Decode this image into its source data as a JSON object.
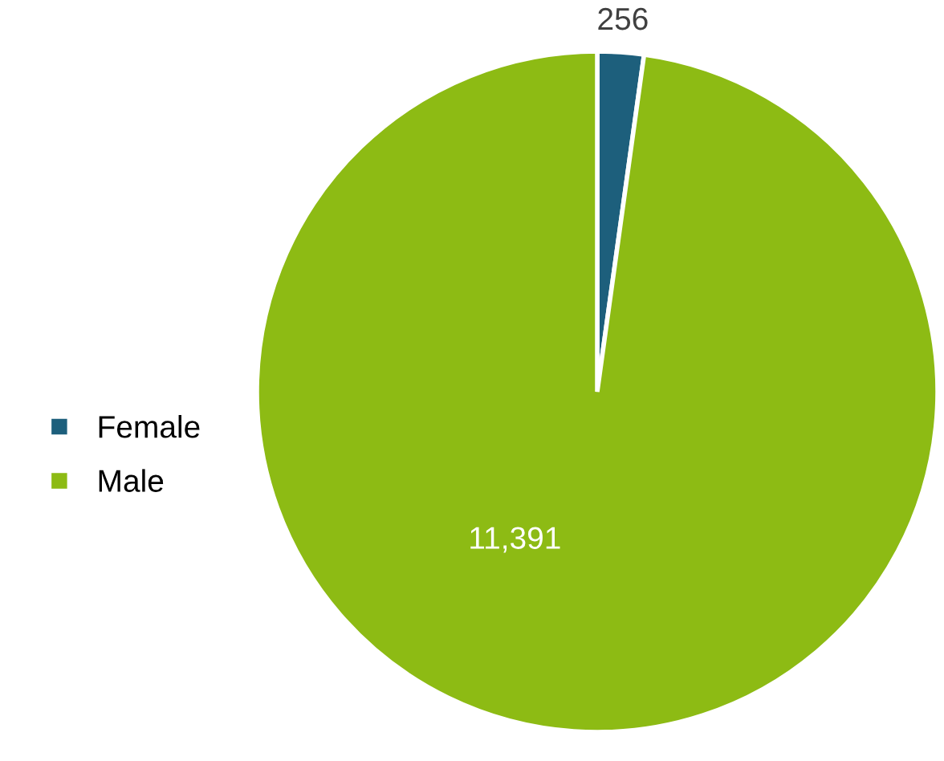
{
  "chart_data": {
    "type": "pie",
    "categories": [
      "Female",
      "Male"
    ],
    "values": [
      256,
      11391
    ],
    "colors": [
      "#1d5f7c",
      "#8dbb14"
    ],
    "value_labels": [
      "256",
      "11,391"
    ],
    "legend": "left"
  }
}
